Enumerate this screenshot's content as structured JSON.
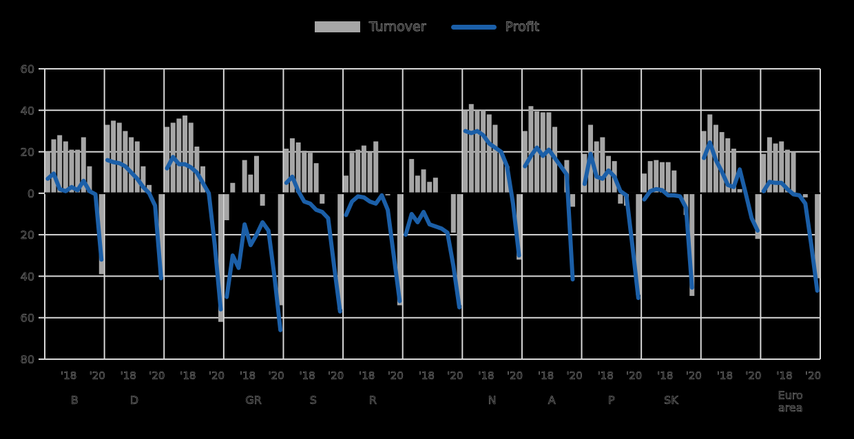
{
  "colors": {
    "background": "#000000",
    "grid": "#d9d9d9",
    "bar": "#a6a6a6",
    "line": "#1b5fa8",
    "zero_line": "#000000",
    "ghost_text": "#060606",
    "ghost_halo": "#8f8f8f"
  },
  "chart_data": {
    "type": "bar+line",
    "title": "",
    "grid": "on",
    "legend_position": "top center",
    "series": [
      {
        "name": "Turnover",
        "type": "bar",
        "color": "#a6a6a6"
      },
      {
        "name": "Profit",
        "type": "line",
        "color": "#1b5fa8"
      }
    ],
    "ylim": [
      -80,
      60
    ],
    "ytick_step": 20,
    "ytick_labels": [
      "60",
      "40",
      "20",
      "0",
      "20",
      "40",
      "60",
      "80"
    ],
    "panel_xtick_labels": [
      "'18",
      "'20"
    ],
    "slots_per_panel": 10,
    "panels": [
      {
        "label": "B",
        "turnover": [
          20,
          26,
          28,
          25,
          21,
          21,
          27,
          13,
          null,
          -39
        ],
        "profit": [
          7,
          9.5,
          2,
          1,
          3,
          1.5,
          6,
          1,
          -0.5,
          -32
        ]
      },
      {
        "label": "D",
        "turnover": [
          33,
          35,
          34,
          30,
          27,
          25,
          13,
          4,
          null,
          -40
        ],
        "profit": [
          16,
          15,
          14.5,
          13,
          10,
          7,
          3,
          0,
          -6,
          -41
        ]
      },
      {
        "label": "",
        "turnover": [
          32,
          34,
          36,
          37.5,
          34,
          22.5,
          13,
          null,
          null,
          -62
        ],
        "profit": [
          12,
          17.5,
          14,
          14,
          12.5,
          10,
          5,
          0,
          -25,
          -56
        ]
      },
      {
        "label": "GR",
        "turnover": [
          -13,
          5,
          null,
          16,
          9,
          18,
          -6,
          null,
          null,
          -54
        ],
        "profit": [
          -50,
          -30,
          -36,
          -15,
          -25,
          -20,
          -14,
          -18,
          -40,
          -66
        ]
      },
      {
        "label": "S",
        "turnover": [
          21.5,
          26.5,
          24.5,
          20.5,
          19.5,
          14.5,
          -5,
          null,
          null,
          -56
        ],
        "profit": [
          5,
          8,
          1,
          -4,
          -5,
          -8,
          -9,
          -12,
          -35,
          -57
        ]
      },
      {
        "label": "R",
        "turnover": [
          8.5,
          19.5,
          21,
          23,
          20,
          25,
          null,
          -1,
          null,
          -54
        ],
        "profit": [
          -10.5,
          -4,
          -1.5,
          -2,
          -4,
          -5,
          -1,
          -8,
          -30,
          -52
        ]
      },
      {
        "label": "",
        "turnover": [
          null,
          16.5,
          8.5,
          11.5,
          5.5,
          7.5,
          null,
          null,
          -19,
          -54
        ],
        "profit": [
          -20,
          -10,
          -14,
          -9,
          -15,
          -16,
          -17,
          -19,
          -35,
          -55
        ]
      },
      {
        "label": "N",
        "turnover": [
          40,
          43,
          40,
          40,
          38,
          33,
          20,
          13,
          null,
          -32
        ],
        "profit": [
          30,
          29,
          30,
          28,
          24,
          22,
          20,
          13,
          -5,
          -30
        ]
      },
      {
        "label": "A",
        "turnover": [
          30,
          42,
          39.5,
          39,
          39,
          32,
          null,
          16,
          -6.5,
          null
        ],
        "profit": [
          13,
          18,
          22,
          18,
          21,
          17,
          13,
          9,
          -41.5,
          null
        ]
      },
      {
        "label": "P",
        "turnover": [
          19,
          33,
          25,
          27,
          18,
          15.5,
          -5,
          -6,
          null,
          -49
        ],
        "profit": [
          4.5,
          19,
          8,
          7,
          11,
          8,
          1,
          -1,
          -25,
          -50.5
        ]
      },
      {
        "label": "SK",
        "turnover": [
          9.5,
          15.5,
          16,
          15,
          15,
          11,
          null,
          -10.5,
          -49.5,
          null
        ],
        "profit": [
          -3,
          1,
          2,
          1.5,
          -1,
          -1,
          -1.5,
          -7,
          -45.5,
          null
        ]
      },
      {
        "label": "",
        "turnover": [
          30,
          38,
          33,
          29.5,
          26.5,
          21.5,
          2,
          null,
          null,
          -22
        ],
        "profit": [
          17,
          24.5,
          16,
          10.5,
          4,
          3,
          11.5,
          0,
          -12,
          -18
        ]
      },
      {
        "label": "Euro area",
        "turnover": [
          19,
          27,
          24,
          25,
          21,
          20,
          null,
          -2,
          null,
          -41
        ],
        "profit": [
          1,
          5.5,
          5,
          5,
          2,
          -0.5,
          -1,
          -5,
          -25,
          -47
        ]
      }
    ]
  }
}
